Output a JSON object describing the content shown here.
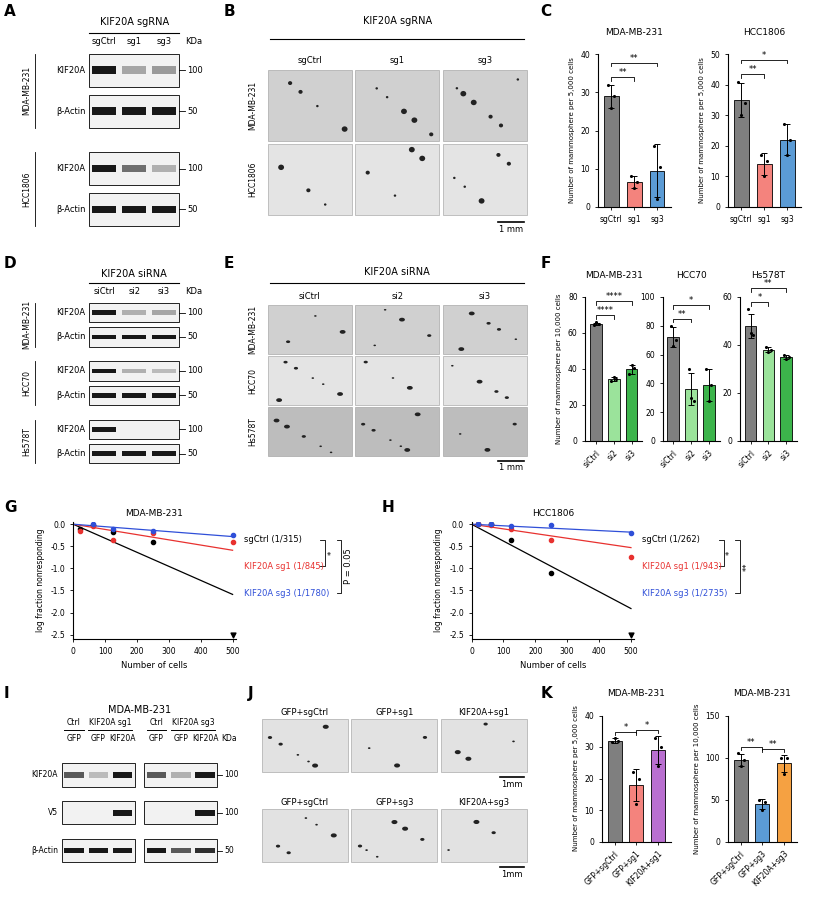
{
  "panel_letters": [
    "A",
    "B",
    "C",
    "D",
    "E",
    "F",
    "G",
    "H",
    "I",
    "J",
    "K"
  ],
  "blots": [
    {
      "title": "KIF20A sgRNA",
      "lanes": [
        "sgCtrl",
        "sg1",
        "sg3"
      ],
      "unit": "KDa",
      "groups": [
        {
          "name": "MDA-MB-231",
          "rows": [
            {
              "protein": "KIF20A",
              "mw": "100"
            },
            {
              "protein": "β-Actin",
              "mw": "50"
            }
          ]
        },
        {
          "name": "HCC1806",
          "rows": [
            {
              "protein": "KIF20A",
              "mw": "100"
            },
            {
              "protein": "β-Actin",
              "mw": "50"
            }
          ]
        }
      ]
    },
    {
      "title": "KIF20A siRNA",
      "lanes": [
        "siCtrl",
        "si2",
        "si3"
      ],
      "unit": "KDa",
      "groups": [
        {
          "name": "MDA-MB-231",
          "rows": [
            {
              "protein": "KIF20A",
              "mw": "100"
            },
            {
              "protein": "β-Actin",
              "mw": "50"
            }
          ]
        },
        {
          "name": "HCC70",
          "rows": [
            {
              "protein": "KIF20A",
              "mw": "100"
            },
            {
              "protein": "β-Actin",
              "mw": "50"
            }
          ]
        },
        {
          "name": "Hs578T",
          "rows": [
            {
              "protein": "KIF20A",
              "mw": "100"
            },
            {
              "protein": "β-Actin",
              "mw": "50"
            }
          ]
        }
      ]
    },
    {
      "title": "MDA-MB-231",
      "unit": "KDa",
      "rows": [
        {
          "protein": "KIF20A",
          "mw": "100"
        },
        {
          "protein": "V5",
          "mw": "100"
        },
        {
          "protein": "β-Actin",
          "mw": "50"
        }
      ],
      "blots": [
        {
          "groups": [
            {
              "label": "Ctrl",
              "lanes": [
                "GFP"
              ]
            },
            {
              "label": "KIF20A sg1",
              "lanes": [
                "GFP",
                "KIF20A"
              ]
            }
          ]
        },
        {
          "groups": [
            {
              "label": "Ctrl",
              "lanes": [
                "GFP"
              ]
            },
            {
              "label": "KIF20A sg3",
              "lanes": [
                "GFP",
                "KIF20A"
              ]
            }
          ]
        }
      ]
    }
  ],
  "images": [
    {
      "title": "KIF20A sgRNA",
      "columns": [
        "sgCtrl",
        "sg1",
        "sg3"
      ],
      "rows": [
        "MDA-MB-231",
        "HCC1806"
      ],
      "scale": "1 mm"
    },
    {
      "title": "KIF20A siRNA",
      "columns": [
        "siCtrl",
        "si2",
        "si3"
      ],
      "rows": [
        "MDA-MB-231",
        "HCC70",
        "Hs578T"
      ],
      "scale": "1 mm"
    },
    {
      "strips": [
        {
          "columns": [
            "GFP+sgCtrl",
            "GFP+sg1",
            "KIF20A+sg1"
          ],
          "scale": "1mm"
        },
        {
          "columns": [
            "GFP+sgCtrl",
            "GFP+sg3",
            "KIF20A+sg3"
          ],
          "scale": "1mm"
        }
      ]
    }
  ],
  "chart_data": [
    {
      "type": "bar",
      "title": "MDA-MB-231",
      "ylabel": "Number of mammosphere per 5,000 cells",
      "categories": [
        "sgCtrl",
        "sg1",
        "sg3"
      ],
      "values": [
        29,
        6.5,
        9.5
      ],
      "errors": [
        3,
        1.5,
        7
      ],
      "points": [
        [
          32,
          26,
          29
        ],
        [
          8,
          5,
          6.5
        ],
        [
          16,
          2,
          10.5
        ]
      ],
      "colors": [
        "#7f7f7f",
        "#f4837d",
        "#5b9bd5"
      ],
      "ylim": [
        0,
        40
      ],
      "yticks": [
        0,
        10,
        20,
        30,
        40
      ],
      "significance": [
        {
          "from": "sgCtrl",
          "to": "sg1",
          "label": "**"
        },
        {
          "from": "sgCtrl",
          "to": "sg3",
          "label": "**"
        }
      ]
    },
    {
      "type": "bar",
      "title": "HCC1806",
      "ylabel": "Number of mammosphere per 5,000 cells",
      "categories": [
        "sgCtrl",
        "sg1",
        "sg3"
      ],
      "values": [
        35,
        14,
        22
      ],
      "errors": [
        5.5,
        3.6,
        5
      ],
      "points": [
        [
          41,
          30,
          34
        ],
        [
          17,
          10,
          15
        ],
        [
          27,
          17,
          22
        ]
      ],
      "colors": [
        "#7f7f7f",
        "#f4837d",
        "#5b9bd5"
      ],
      "ylim": [
        0,
        50
      ],
      "yticks": [
        0,
        10,
        20,
        30,
        40,
        50
      ],
      "significance": [
        {
          "from": "sgCtrl",
          "to": "sg1",
          "label": "**"
        },
        {
          "from": "sgCtrl",
          "to": "sg3",
          "label": "*"
        }
      ]
    },
    {
      "type": "bar",
      "title": "MDA-MB-231",
      "ylabel": "Number of mammosphere per 10,000 cells",
      "categories": [
        "siCtrl",
        "si2",
        "si3"
      ],
      "values": [
        65,
        34.5,
        40
      ],
      "errors": [
        0.8,
        1,
        2.5
      ],
      "points": [
        [
          64.5,
          66,
          65
        ],
        [
          33.5,
          35.5,
          34.5
        ],
        [
          37,
          42.5,
          40.5
        ]
      ],
      "colors": [
        "#7f7f7f",
        "#9be39b",
        "#3cb44b"
      ],
      "ylim": [
        0,
        80
      ],
      "yticks": [
        0,
        20,
        40,
        60,
        80
      ],
      "significance": [
        {
          "from": "siCtrl",
          "to": "si2",
          "label": "****"
        },
        {
          "from": "siCtrl",
          "to": "si3",
          "label": "****"
        }
      ]
    },
    {
      "type": "bar",
      "title": "HCC70",
      "categories": [
        "siCtrl",
        "si2",
        "si3"
      ],
      "values": [
        72,
        36,
        39
      ],
      "errors": [
        7,
        11,
        11
      ],
      "points": [
        [
          80,
          66,
          70
        ],
        [
          50,
          30,
          28
        ],
        [
          50,
          28,
          39
        ]
      ],
      "colors": [
        "#7f7f7f",
        "#9be39b",
        "#3cb44b"
      ],
      "ylim": [
        0,
        100
      ],
      "yticks": [
        0,
        20,
        40,
        60,
        80,
        100
      ],
      "significance": [
        {
          "from": "siCtrl",
          "to": "si2",
          "label": "**"
        },
        {
          "from": "siCtrl",
          "to": "si3",
          "label": "*"
        }
      ]
    },
    {
      "type": "bar",
      "title": "Hs578T",
      "categories": [
        "siCtrl",
        "si2",
        "si3"
      ],
      "values": [
        48,
        38,
        35
      ],
      "errors": [
        5,
        1,
        1
      ],
      "points": [
        [
          55,
          45,
          44
        ],
        [
          39,
          37,
          38
        ],
        [
          36,
          34,
          35
        ]
      ],
      "colors": [
        "#7f7f7f",
        "#9be39b",
        "#3cb44b"
      ],
      "ylim": [
        0,
        60
      ],
      "yticks": [
        0,
        20,
        40,
        60
      ],
      "significance": [
        {
          "from": "siCtrl",
          "to": "si2",
          "label": "*"
        },
        {
          "from": "siCtrl",
          "to": "si3",
          "label": "**"
        }
      ]
    },
    {
      "type": "scatter",
      "title": "MDA-MB-231",
      "xlabel": "Number of cells",
      "ylabel": "log fraction nonresponding",
      "xlim": [
        0,
        510
      ],
      "xticks": [
        0,
        100,
        200,
        300,
        400,
        500
      ],
      "ylim": [
        -2.6,
        0.05
      ],
      "yticks": [
        {
          "value": 0,
          "label": "0.0"
        },
        {
          "value": -0.5,
          "label": "-0.5"
        },
        {
          "value": -1,
          "label": "-1.0"
        },
        {
          "value": -1.5,
          "label": "-1.5"
        },
        {
          "value": -2,
          "label": "-2.0"
        },
        {
          "value": -2.5,
          "label": "-2.5"
        }
      ],
      "series": [
        {
          "name": "sgCtrl (1/315)",
          "color": "#000000",
          "marker": "circle",
          "x": [
            20,
            62,
            125,
            250
          ],
          "values": [
            -0.1,
            -0.02,
            -0.18,
            -0.4
          ],
          "censored": {
            "x": [
              500
            ],
            "values": [
              -2.5
            ],
            "marker": "triangle_down"
          },
          "fit": {
            "x": [
              0,
              500
            ],
            "values": [
              0,
              -1.59
            ]
          }
        },
        {
          "name": "KIF20A sg1 (1/845)",
          "color": "#e8312f",
          "marker": "circle",
          "x": [
            20,
            62,
            125,
            250,
            500
          ],
          "values": [
            -0.15,
            -0.05,
            -0.35,
            -0.2,
            -0.4
          ],
          "fit": {
            "x": [
              0,
              500
            ],
            "values": [
              0,
              -0.59
            ]
          }
        },
        {
          "name": "KIF20A sg3 (1/1780)",
          "color": "#2f4fd8",
          "marker": "circle",
          "x": [
            62,
            125,
            250,
            500
          ],
          "values": [
            0,
            -0.1,
            -0.15,
            -0.25
          ],
          "fit": {
            "x": [
              0,
              500
            ],
            "values": [
              0,
              -0.28
            ]
          }
        }
      ],
      "significance": [
        {
          "from": "sgCtrl (1/315)",
          "to": "KIF20A sg1 (1/845)",
          "label": "*"
        },
        {
          "from": "sgCtrl (1/315)",
          "to": "KIF20A sg3 (1/1780)",
          "label": "P = 0.05"
        }
      ]
    },
    {
      "type": "scatter",
      "title": "HCC1806",
      "xlabel": "Number of cells",
      "ylabel": "log fraction nonresponding",
      "xlim": [
        0,
        510
      ],
      "xticks": [
        0,
        100,
        200,
        300,
        400,
        500
      ],
      "ylim": [
        -2.6,
        0.05
      ],
      "yticks": [
        {
          "value": 0,
          "label": "0.0"
        },
        {
          "value": -0.5,
          "label": "-0.5"
        },
        {
          "value": -1,
          "label": "-1.0"
        },
        {
          "value": -1.5,
          "label": "-1.5"
        },
        {
          "value": -2,
          "label": "-2.0"
        },
        {
          "value": -2.5,
          "label": "-2.5"
        }
      ],
      "series": [
        {
          "name": "sgCtrl (1/262)",
          "color": "#000000",
          "marker": "circle",
          "x": [
            20,
            62,
            125,
            250
          ],
          "values": [
            0,
            0,
            -0.35,
            -1.1
          ],
          "censored": {
            "x": [
              500
            ],
            "values": [
              -2.5
            ],
            "marker": "triangle_down"
          },
          "fit": {
            "x": [
              0,
              500
            ],
            "values": [
              0,
              -1.91
            ]
          }
        },
        {
          "name": "KIF20A sg1 (1/943)",
          "color": "#e8312f",
          "marker": "circle",
          "x": [
            20,
            62,
            125,
            250,
            500
          ],
          "values": [
            0,
            -0.02,
            -0.1,
            -0.35,
            -0.75
          ],
          "fit": {
            "x": [
              0,
              500
            ],
            "values": [
              0,
              -0.53
            ]
          }
        },
        {
          "name": "KIF20A sg3 (1/2735)",
          "color": "#2f4fd8",
          "marker": "circle",
          "x": [
            20,
            62,
            125,
            250,
            500
          ],
          "values": [
            0,
            0,
            -0.05,
            -0.02,
            -0.2
          ],
          "fit": {
            "x": [
              0,
              500
            ],
            "values": [
              0,
              -0.18
            ]
          }
        }
      ],
      "significance": [
        {
          "from": "sgCtrl (1/262)",
          "to": "KIF20A sg1 (1/943)",
          "label": "*"
        },
        {
          "from": "sgCtrl (1/262)",
          "to": "KIF20A sg3 (1/2735)",
          "label": "**"
        }
      ]
    },
    {
      "type": "bar",
      "title": "MDA-MB-231",
      "ylabel": "Number of mammosphere per 5,000 cells",
      "categories": [
        "GFP+sgCtrl",
        "GFP+sg1",
        "KIF20A+sg1"
      ],
      "values": [
        32,
        18,
        29
      ],
      "errors": [
        0.8,
        5,
        4.5
      ],
      "points": [
        [
          31.5,
          33,
          32
        ],
        [
          22,
          12,
          20
        ],
        [
          33,
          24,
          30
        ]
      ],
      "colors": [
        "#7f7f7f",
        "#f4837d",
        "#b96fd0"
      ],
      "ylim": [
        0,
        40
      ],
      "yticks": [
        0,
        10,
        20,
        30,
        40
      ],
      "significance": [
        {
          "from": "GFP+sgCtrl",
          "to": "GFP+sg1",
          "label": "*"
        },
        {
          "from": "GFP+sg1",
          "to": "KIF20A+sg1",
          "label": "*"
        }
      ]
    },
    {
      "type": "bar",
      "title": "MDA-MB-231",
      "ylabel": "Number of mammosphere per 10,000 cells",
      "categories": [
        "GFP+sgCtrl",
        "GFP+sg3",
        "KIF20A+sg3"
      ],
      "values": [
        97,
        45,
        93
      ],
      "errors": [
        7.5,
        6,
        10
      ],
      "points": [
        [
          105,
          90,
          97
        ],
        [
          50,
          38,
          47
        ],
        [
          100,
          80,
          99
        ]
      ],
      "colors": [
        "#7f7f7f",
        "#5b9bd5",
        "#f5a142"
      ],
      "ylim": [
        0,
        150
      ],
      "yticks": [
        0,
        50,
        100,
        150
      ],
      "significance": [
        {
          "from": "GFP+sgCtrl",
          "to": "GFP+sg3",
          "label": "**"
        },
        {
          "from": "GFP+sg3",
          "to": "KIF20A+sg3",
          "label": "**"
        }
      ]
    }
  ]
}
